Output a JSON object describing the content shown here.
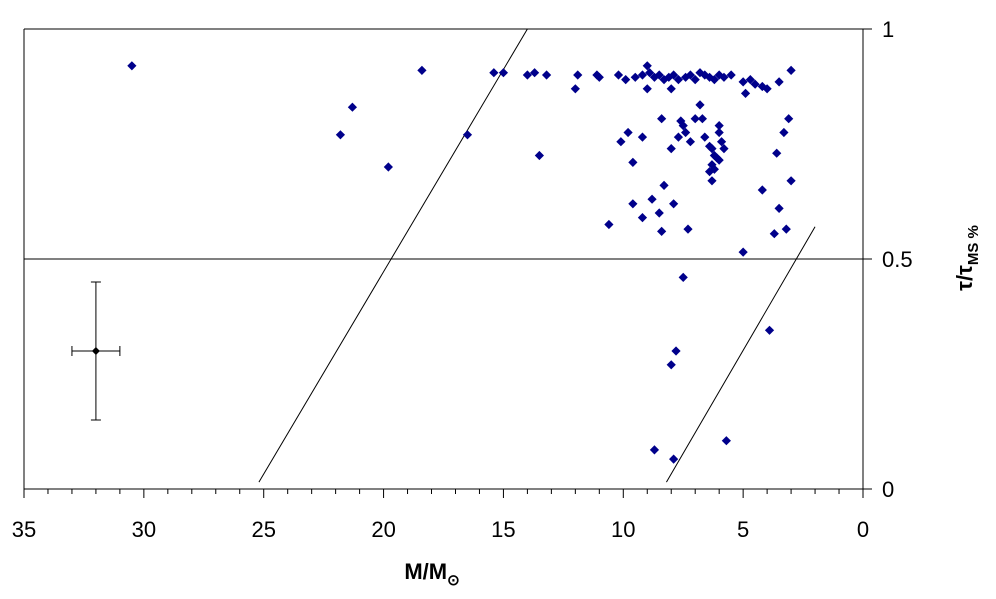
{
  "chart_data": {
    "type": "scatter",
    "xaxis": {
      "label_main": "M/M",
      "label_sub": "⊙",
      "reversed": true,
      "range": [
        0,
        35
      ],
      "major_ticks": [
        0,
        5,
        10,
        15,
        20,
        25,
        30,
        35
      ],
      "tick_labels": [
        "0",
        "5",
        "10",
        "15",
        "20",
        "25",
        "30",
        "35"
      ],
      "minor_step": 1
    },
    "yaxis": {
      "label_main": "τ/τ",
      "label_sub": "MS %",
      "position": "right",
      "range": [
        0,
        1
      ],
      "major_ticks": [
        0,
        0.5,
        1
      ],
      "tick_labels": [
        "0",
        "0.5",
        "1"
      ]
    },
    "grid": false,
    "legend": "none",
    "marker_color": "#00008B",
    "reference_lines": [
      {
        "name": "horizontal-line",
        "x1": 35,
        "y1": 0.5,
        "x2": 0,
        "y2": 0.5
      },
      {
        "name": "diagonal-line-left",
        "x1": 25.2,
        "y1": 0.015,
        "x2": 14.0,
        "y2": 1.0
      },
      {
        "name": "diagonal-line-right",
        "x1": 8.2,
        "y1": 0.015,
        "x2": 2.0,
        "y2": 0.57
      }
    ],
    "error_bar": {
      "x": 32.0,
      "y": 0.3,
      "x_err": 1.0,
      "y_err": 0.15
    },
    "points": [
      {
        "x": 30.5,
        "y": 0.92
      },
      {
        "x": 21.8,
        "y": 0.77
      },
      {
        "x": 21.3,
        "y": 0.83
      },
      {
        "x": 19.8,
        "y": 0.7
      },
      {
        "x": 18.4,
        "y": 0.91
      },
      {
        "x": 16.5,
        "y": 0.77
      },
      {
        "x": 15.4,
        "y": 0.905
      },
      {
        "x": 15.0,
        "y": 0.905
      },
      {
        "x": 14.0,
        "y": 0.9
      },
      {
        "x": 13.7,
        "y": 0.905
      },
      {
        "x": 13.2,
        "y": 0.9
      },
      {
        "x": 13.5,
        "y": 0.725
      },
      {
        "x": 12.0,
        "y": 0.87
      },
      {
        "x": 11.9,
        "y": 0.9
      },
      {
        "x": 11.1,
        "y": 0.9
      },
      {
        "x": 11.0,
        "y": 0.895
      },
      {
        "x": 10.2,
        "y": 0.9
      },
      {
        "x": 9.9,
        "y": 0.89
      },
      {
        "x": 9.5,
        "y": 0.895
      },
      {
        "x": 9.2,
        "y": 0.9
      },
      {
        "x": 9.0,
        "y": 0.92
      },
      {
        "x": 8.9,
        "y": 0.905
      },
      {
        "x": 8.7,
        "y": 0.895
      },
      {
        "x": 8.5,
        "y": 0.9
      },
      {
        "x": 8.3,
        "y": 0.89
      },
      {
        "x": 8.1,
        "y": 0.895
      },
      {
        "x": 7.9,
        "y": 0.9
      },
      {
        "x": 7.7,
        "y": 0.89
      },
      {
        "x": 7.4,
        "y": 0.895
      },
      {
        "x": 7.2,
        "y": 0.9
      },
      {
        "x": 7.0,
        "y": 0.89
      },
      {
        "x": 6.8,
        "y": 0.905
      },
      {
        "x": 6.6,
        "y": 0.9
      },
      {
        "x": 6.4,
        "y": 0.895
      },
      {
        "x": 6.2,
        "y": 0.89
      },
      {
        "x": 6.0,
        "y": 0.9
      },
      {
        "x": 5.8,
        "y": 0.895
      },
      {
        "x": 5.5,
        "y": 0.9
      },
      {
        "x": 5.0,
        "y": 0.885
      },
      {
        "x": 4.7,
        "y": 0.89
      },
      {
        "x": 4.5,
        "y": 0.88
      },
      {
        "x": 4.2,
        "y": 0.875
      },
      {
        "x": 4.0,
        "y": 0.87
      },
      {
        "x": 3.5,
        "y": 0.885
      },
      {
        "x": 3.0,
        "y": 0.91
      },
      {
        "x": 9.0,
        "y": 0.87
      },
      {
        "x": 8.0,
        "y": 0.87
      },
      {
        "x": 4.9,
        "y": 0.86
      },
      {
        "x": 10.1,
        "y": 0.755
      },
      {
        "x": 9.8,
        "y": 0.775
      },
      {
        "x": 9.2,
        "y": 0.765
      },
      {
        "x": 8.4,
        "y": 0.805
      },
      {
        "x": 8.0,
        "y": 0.74
      },
      {
        "x": 7.7,
        "y": 0.765
      },
      {
        "x": 7.6,
        "y": 0.8
      },
      {
        "x": 7.5,
        "y": 0.79
      },
      {
        "x": 7.4,
        "y": 0.775
      },
      {
        "x": 7.2,
        "y": 0.755
      },
      {
        "x": 7.0,
        "y": 0.805
      },
      {
        "x": 6.8,
        "y": 0.835
      },
      {
        "x": 6.7,
        "y": 0.805
      },
      {
        "x": 6.6,
        "y": 0.765
      },
      {
        "x": 6.4,
        "y": 0.745
      },
      {
        "x": 6.3,
        "y": 0.74
      },
      {
        "x": 6.2,
        "y": 0.725
      },
      {
        "x": 6.1,
        "y": 0.72
      },
      {
        "x": 6.0,
        "y": 0.79
      },
      {
        "x": 6.0,
        "y": 0.775
      },
      {
        "x": 5.9,
        "y": 0.755
      },
      {
        "x": 5.8,
        "y": 0.74
      },
      {
        "x": 6.3,
        "y": 0.705
      },
      {
        "x": 6.2,
        "y": 0.695
      },
      {
        "x": 6.4,
        "y": 0.69
      },
      {
        "x": 6.3,
        "y": 0.67
      },
      {
        "x": 6.0,
        "y": 0.715
      },
      {
        "x": 3.6,
        "y": 0.73
      },
      {
        "x": 3.3,
        "y": 0.775
      },
      {
        "x": 3.1,
        "y": 0.805
      },
      {
        "x": 3.0,
        "y": 0.67
      },
      {
        "x": 4.2,
        "y": 0.65
      },
      {
        "x": 9.6,
        "y": 0.71
      },
      {
        "x": 8.3,
        "y": 0.66
      },
      {
        "x": 8.8,
        "y": 0.63
      },
      {
        "x": 9.6,
        "y": 0.62
      },
      {
        "x": 9.2,
        "y": 0.59
      },
      {
        "x": 8.5,
        "y": 0.6
      },
      {
        "x": 7.9,
        "y": 0.62
      },
      {
        "x": 10.6,
        "y": 0.575
      },
      {
        "x": 8.4,
        "y": 0.56
      },
      {
        "x": 7.3,
        "y": 0.565
      },
      {
        "x": 3.7,
        "y": 0.555
      },
      {
        "x": 3.2,
        "y": 0.565
      },
      {
        "x": 3.5,
        "y": 0.61
      },
      {
        "x": 5.0,
        "y": 0.515
      },
      {
        "x": 7.5,
        "y": 0.46
      },
      {
        "x": 3.9,
        "y": 0.345
      },
      {
        "x": 7.8,
        "y": 0.3
      },
      {
        "x": 8.0,
        "y": 0.27
      },
      {
        "x": 8.7,
        "y": 0.085
      },
      {
        "x": 7.9,
        "y": 0.065
      },
      {
        "x": 5.7,
        "y": 0.105
      }
    ]
  }
}
